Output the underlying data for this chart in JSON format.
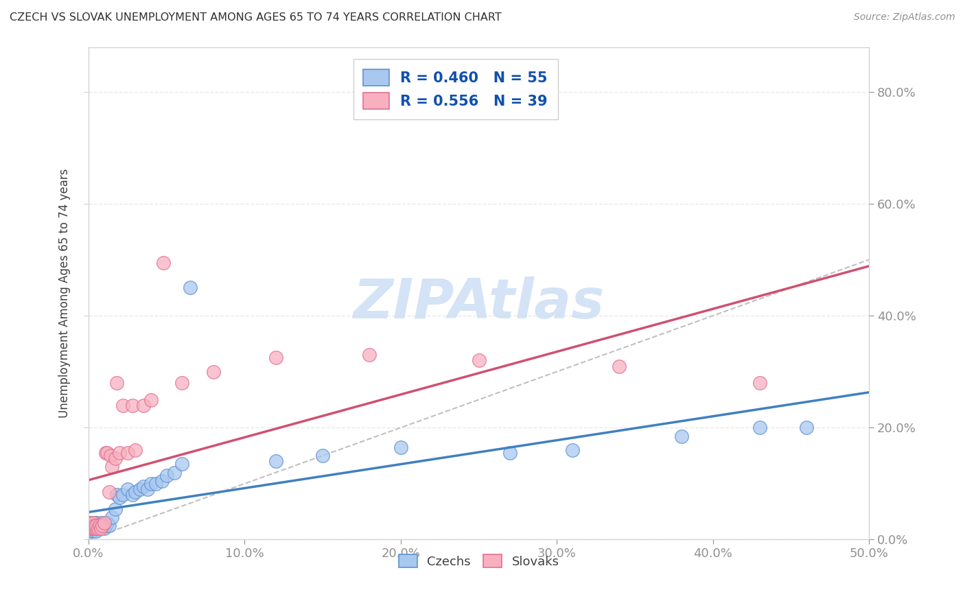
{
  "title": "CZECH VS SLOVAK UNEMPLOYMENT AMONG AGES 65 TO 74 YEARS CORRELATION CHART",
  "source": "Source: ZipAtlas.com",
  "ylabel": "Unemployment Among Ages 65 to 74 years",
  "xlim": [
    0.0,
    0.5
  ],
  "ylim": [
    0.0,
    0.88
  ],
  "czech_color": "#a8c8f0",
  "slovak_color": "#f8b0c0",
  "czech_edge": "#6090d0",
  "slovak_edge": "#e07090",
  "czech_line_color": "#4080c0",
  "slovak_line_color": "#d05070",
  "R_czech": 0.46,
  "N_czech": 55,
  "R_slovak": 0.556,
  "N_slovak": 39,
  "czech_x": [
    0.001,
    0.001,
    0.001,
    0.002,
    0.002,
    0.002,
    0.002,
    0.003,
    0.003,
    0.003,
    0.003,
    0.004,
    0.004,
    0.004,
    0.005,
    0.005,
    0.005,
    0.006,
    0.006,
    0.007,
    0.007,
    0.008,
    0.008,
    0.009,
    0.01,
    0.01,
    0.011,
    0.012,
    0.013,
    0.015,
    0.017,
    0.018,
    0.02,
    0.022,
    0.025,
    0.028,
    0.03,
    0.033,
    0.035,
    0.038,
    0.04,
    0.043,
    0.047,
    0.05,
    0.055,
    0.06,
    0.065,
    0.12,
    0.15,
    0.2,
    0.27,
    0.31,
    0.38,
    0.43,
    0.46
  ],
  "czech_y": [
    0.02,
    0.025,
    0.03,
    0.015,
    0.02,
    0.025,
    0.03,
    0.015,
    0.02,
    0.025,
    0.03,
    0.02,
    0.025,
    0.03,
    0.015,
    0.02,
    0.03,
    0.02,
    0.025,
    0.02,
    0.025,
    0.025,
    0.03,
    0.025,
    0.02,
    0.03,
    0.025,
    0.03,
    0.025,
    0.04,
    0.055,
    0.08,
    0.075,
    0.08,
    0.09,
    0.08,
    0.085,
    0.09,
    0.095,
    0.09,
    0.1,
    0.1,
    0.105,
    0.115,
    0.12,
    0.135,
    0.45,
    0.14,
    0.15,
    0.165,
    0.155,
    0.16,
    0.185,
    0.2,
    0.2
  ],
  "slovak_x": [
    0.001,
    0.001,
    0.002,
    0.002,
    0.002,
    0.003,
    0.003,
    0.003,
    0.004,
    0.004,
    0.005,
    0.005,
    0.006,
    0.007,
    0.008,
    0.009,
    0.01,
    0.011,
    0.012,
    0.013,
    0.014,
    0.015,
    0.017,
    0.018,
    0.02,
    0.022,
    0.025,
    0.028,
    0.03,
    0.035,
    0.04,
    0.048,
    0.06,
    0.08,
    0.12,
    0.18,
    0.25,
    0.34,
    0.43
  ],
  "slovak_y": [
    0.02,
    0.025,
    0.02,
    0.025,
    0.03,
    0.02,
    0.025,
    0.03,
    0.02,
    0.025,
    0.02,
    0.025,
    0.02,
    0.025,
    0.02,
    0.025,
    0.03,
    0.155,
    0.155,
    0.085,
    0.15,
    0.13,
    0.145,
    0.28,
    0.155,
    0.24,
    0.155,
    0.24,
    0.16,
    0.24,
    0.25,
    0.495,
    0.28,
    0.3,
    0.325,
    0.33,
    0.32,
    0.31,
    0.28
  ],
  "watermark": "ZIPAtlas",
  "watermark_color": "#d0e0f5",
  "bg_color": "#ffffff",
  "grid_color": "#e8e8e8",
  "title_color": "#303030",
  "axis_label_color": "#404040",
  "tick_color": "#2060c0",
  "legend_r_color": "#1050b0"
}
